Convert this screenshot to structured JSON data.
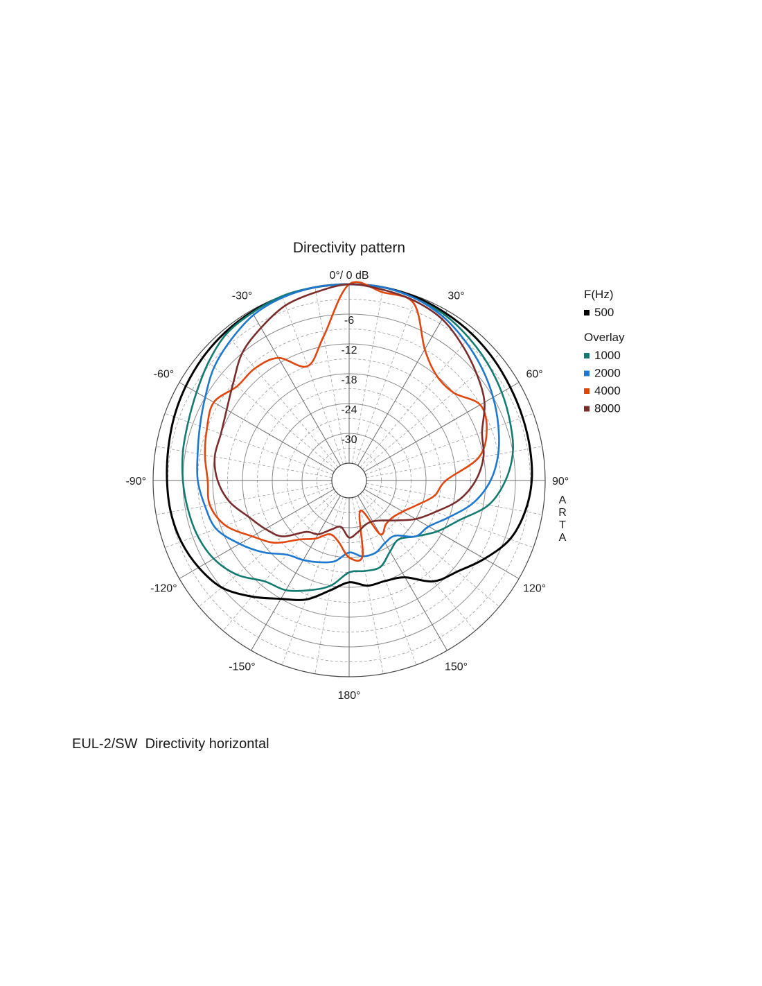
{
  "caption": "EUL-2/SW  Directivity horizontal",
  "watermark": [
    "A",
    "R",
    "T",
    "A"
  ],
  "chart_data": {
    "type": "polar",
    "title": "Directivity pattern",
    "radial_unit": "dB",
    "rlim": [
      -36,
      0
    ],
    "radial_ticks": [
      {
        "value": -6,
        "label": "-6"
      },
      {
        "value": -12,
        "label": "-12"
      },
      {
        "value": -18,
        "label": "-18"
      },
      {
        "value": -24,
        "label": "-24"
      },
      {
        "value": -30,
        "label": "-30"
      }
    ],
    "angle_ticks": [
      {
        "angle": 0,
        "label": "0°/ 0 dB"
      },
      {
        "angle": 30,
        "label": "30°"
      },
      {
        "angle": 60,
        "label": "60°"
      },
      {
        "angle": 90,
        "label": "90°"
      },
      {
        "angle": 120,
        "label": "120°"
      },
      {
        "angle": 150,
        "label": "150°"
      },
      {
        "angle": 180,
        "label": "180°"
      },
      {
        "angle": -150,
        "label": "-150°"
      },
      {
        "angle": -120,
        "label": "-120°"
      },
      {
        "angle": -90,
        "label": "-90°"
      },
      {
        "angle": -60,
        "label": "-60°"
      },
      {
        "angle": -30,
        "label": "-30°"
      }
    ],
    "grid": true,
    "legend_position": "right",
    "legend": {
      "heading": "F(Hz)",
      "overlay_heading": "Overlay"
    },
    "angles": [
      -180,
      -170,
      -160,
      -150,
      -140,
      -130,
      -120,
      -110,
      -100,
      -90,
      -80,
      -70,
      -60,
      -50,
      -40,
      -30,
      -20,
      -10,
      0,
      10,
      20,
      30,
      40,
      50,
      60,
      70,
      80,
      90,
      100,
      110,
      120,
      130,
      140,
      150,
      160,
      170
    ],
    "series": [
      {
        "name": "500",
        "color": "#000000",
        "values": [
          -19,
          -17,
          -14,
          -12,
          -9,
          -6,
          -4.5,
          -3.5,
          -3,
          -2.8,
          -2.5,
          -2,
          -1.5,
          -1,
          -0.6,
          -0.3,
          -0.1,
          0,
          0,
          0,
          -0.2,
          -0.6,
          -1,
          -1.5,
          -2,
          -2.3,
          -2.5,
          -2.7,
          -3.5,
          -5,
          -8,
          -11,
          -13,
          -17,
          -18,
          -18
        ]
      },
      {
        "name": "1000",
        "color": "#137a72",
        "values": [
          -21,
          -18,
          -16,
          -14,
          -13,
          -10,
          -8,
          -7,
          -6.5,
          -6,
          -5.5,
          -5,
          -4,
          -2.5,
          -1,
          -0.5,
          0,
          0,
          0,
          0,
          -0.5,
          -1,
          -2,
          -3,
          -4,
          -5,
          -6,
          -8,
          -11,
          -16,
          -19,
          -22,
          -24,
          -23,
          -21,
          -21
        ]
      },
      {
        "name": "2000",
        "color": "#1f78d0",
        "values": [
          -25,
          -23,
          -22,
          -21,
          -20,
          -17,
          -14,
          -11,
          -10,
          -9,
          -8.5,
          -7.5,
          -6,
          -4,
          -2.5,
          -1,
          -0.3,
          0,
          0,
          0,
          -0.5,
          -1.5,
          -3,
          -4.5,
          -6,
          -7.5,
          -9,
          -11,
          -14,
          -18,
          -21,
          -22,
          -25,
          -25,
          -24,
          -24
        ]
      },
      {
        "name": "4000",
        "color": "#e0460e",
        "values": [
          -24,
          -27,
          -28,
          -26,
          -24,
          -20,
          -17,
          -13,
          -11,
          -11,
          -10,
          -9,
          -8,
          -10,
          -10,
          -11,
          -15,
          -10,
          0,
          -1,
          -1.5,
          -9,
          -12,
          -12,
          -9,
          -10,
          -13,
          -20,
          -22,
          -25,
          -27,
          -28,
          -28,
          -27,
          -33,
          -24
        ]
      },
      {
        "name": "8000",
        "color": "#7b2d2d",
        "values": [
          -28,
          -30,
          -29,
          -27,
          -26,
          -22,
          -20,
          -18,
          -15,
          -13,
          -12,
          -12,
          -11,
          -9,
          -6,
          -4,
          -2,
          -1,
          0,
          -0.5,
          -1,
          -2,
          -4,
          -6,
          -8,
          -11,
          -12,
          -14,
          -17,
          -21,
          -24,
          -27,
          -29,
          -30,
          -30,
          -29
        ]
      }
    ]
  }
}
